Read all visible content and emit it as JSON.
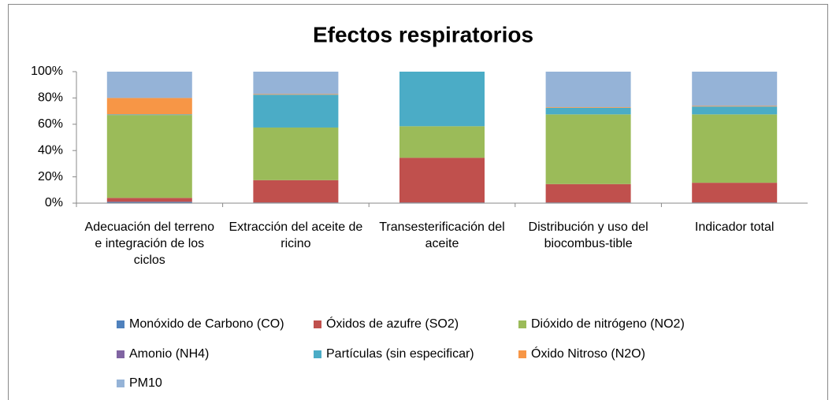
{
  "chart_data": {
    "type": "bar",
    "stacked": true,
    "title": "Efectos respiratorios",
    "categories": [
      "Adecuación del terreno e integración de los ciclos",
      "Extracción del aceite de ricino",
      "Transesterificación del aceite",
      "Distribución y uso del biocombus-tible",
      "Indicador total"
    ],
    "series": [
      {
        "name": "Monóxido de Carbono (CO)",
        "color": "#4f81bd",
        "values": [
          1,
          0.5,
          0.5,
          0.5,
          0.5
        ]
      },
      {
        "name": "Óxidos de azufre (SO2)",
        "color": "#c0504d",
        "values": [
          3,
          17,
          34,
          14,
          15
        ]
      },
      {
        "name": "Dióxido de nitrógeno (NO2)",
        "color": "#9bbb59",
        "values": [
          63,
          40,
          24,
          53,
          52
        ]
      },
      {
        "name": "Amonio (NH4)",
        "color": "#8064a2",
        "values": [
          0,
          0,
          0,
          0,
          0
        ]
      },
      {
        "name": "Partículas (sin especificar)",
        "color": "#4bacc6",
        "values": [
          0.5,
          25,
          41.5,
          5,
          6
        ]
      },
      {
        "name": "Óxido Nitroso (N2O)",
        "color": "#f79646",
        "values": [
          12.5,
          0.5,
          0,
          0.5,
          0.5
        ]
      },
      {
        "name": "PM10",
        "color": "#95b3d7",
        "values": [
          20,
          17,
          0,
          27,
          26
        ]
      }
    ],
    "ylim": [
      0,
      100
    ],
    "yticks": [
      {
        "value": 0,
        "label": "0%"
      },
      {
        "value": 20,
        "label": "20%"
      },
      {
        "value": 40,
        "label": "40%"
      },
      {
        "value": 60,
        "label": "60%"
      },
      {
        "value": 80,
        "label": "80%"
      },
      {
        "value": 100,
        "label": "100%"
      }
    ],
    "grid": false,
    "legend": "bottom"
  }
}
